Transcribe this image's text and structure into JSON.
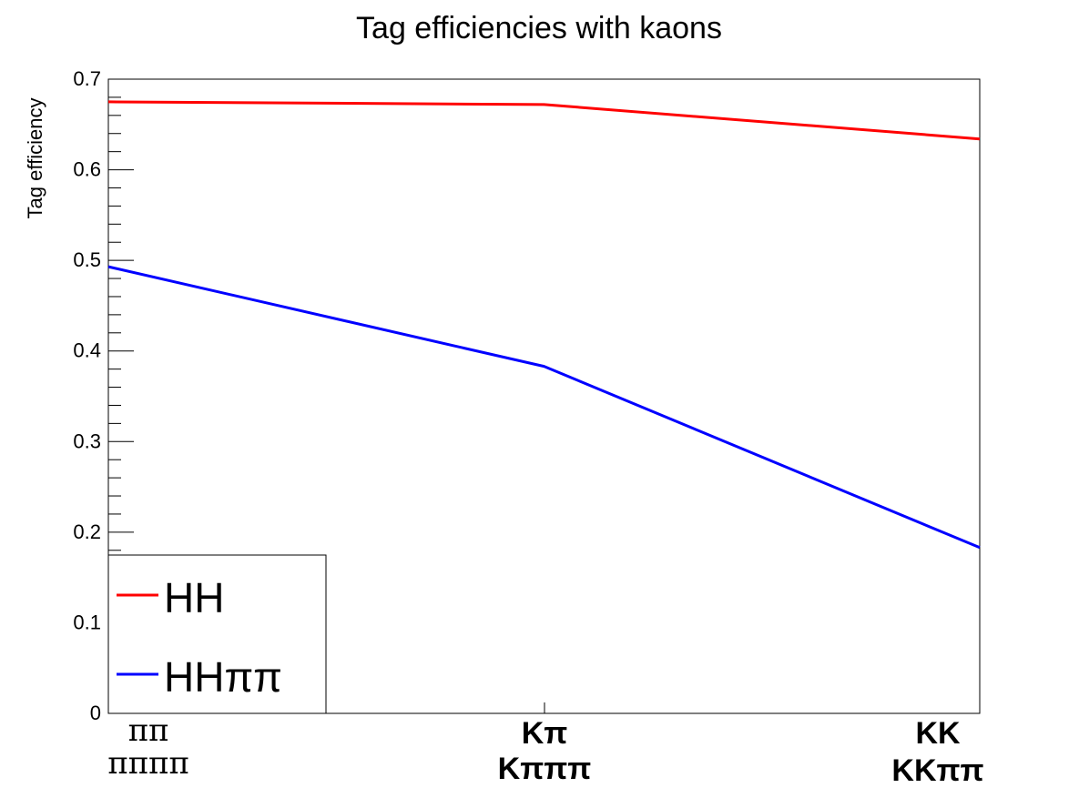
{
  "chart_data": {
    "type": "line",
    "title": "Tag efficiencies with kaons",
    "ylabel": "Tag efficiency",
    "xlabel": "",
    "ylim": [
      0,
      0.7
    ],
    "grid": false,
    "legend_position": "bottom-left",
    "y_ticks": [
      "0",
      "0.1",
      "0.2",
      "0.3",
      "0.4",
      "0.5",
      "0.6",
      "0.7"
    ],
    "categories": [
      {
        "line1": "ππ",
        "line2": "ππππ",
        "bold": false
      },
      {
        "line1": "Kπ",
        "line2": "Kπππ",
        "bold": true
      },
      {
        "line1": "KK",
        "line2": "KKππ",
        "bold": true
      }
    ],
    "series": [
      {
        "name": "HH",
        "color": "#ff0000",
        "points": [
          {
            "x": 0,
            "y": 0.675
          },
          {
            "x": 0.5,
            "y": 0.672
          },
          {
            "x": 1,
            "y": 0.634
          }
        ]
      },
      {
        "name": "HHππ",
        "color": "#0000ff",
        "points": [
          {
            "x": 0,
            "y": 0.493
          },
          {
            "x": 0.5,
            "y": 0.383
          },
          {
            "x": 1,
            "y": 0.183
          }
        ]
      }
    ]
  }
}
